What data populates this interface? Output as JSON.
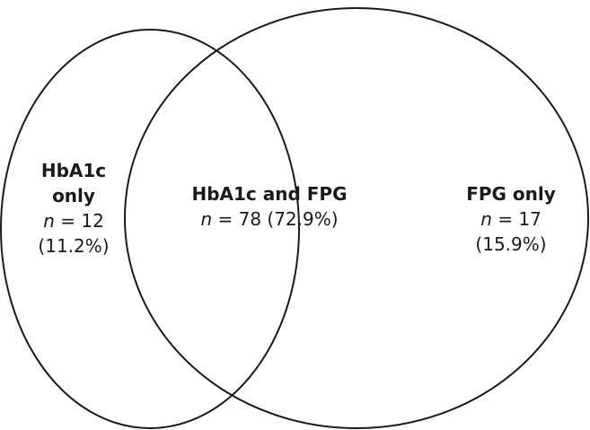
{
  "venn": {
    "left_set": {
      "title_line1": "HbA1c",
      "title_line2": "only",
      "n_symbol": "n",
      "n_text": " = 12",
      "pct": "(11.2%)"
    },
    "intersection": {
      "title": "HbA1c and FPG",
      "n_symbol": "n",
      "n_text": " = 78 (72.9%)"
    },
    "right_set": {
      "title": "FPG only",
      "n_symbol": "n",
      "n_text": " = 17",
      "pct": "(15.9%)"
    },
    "colors": {
      "stroke": "#1a1a1a",
      "fill": "#ffffff"
    }
  }
}
